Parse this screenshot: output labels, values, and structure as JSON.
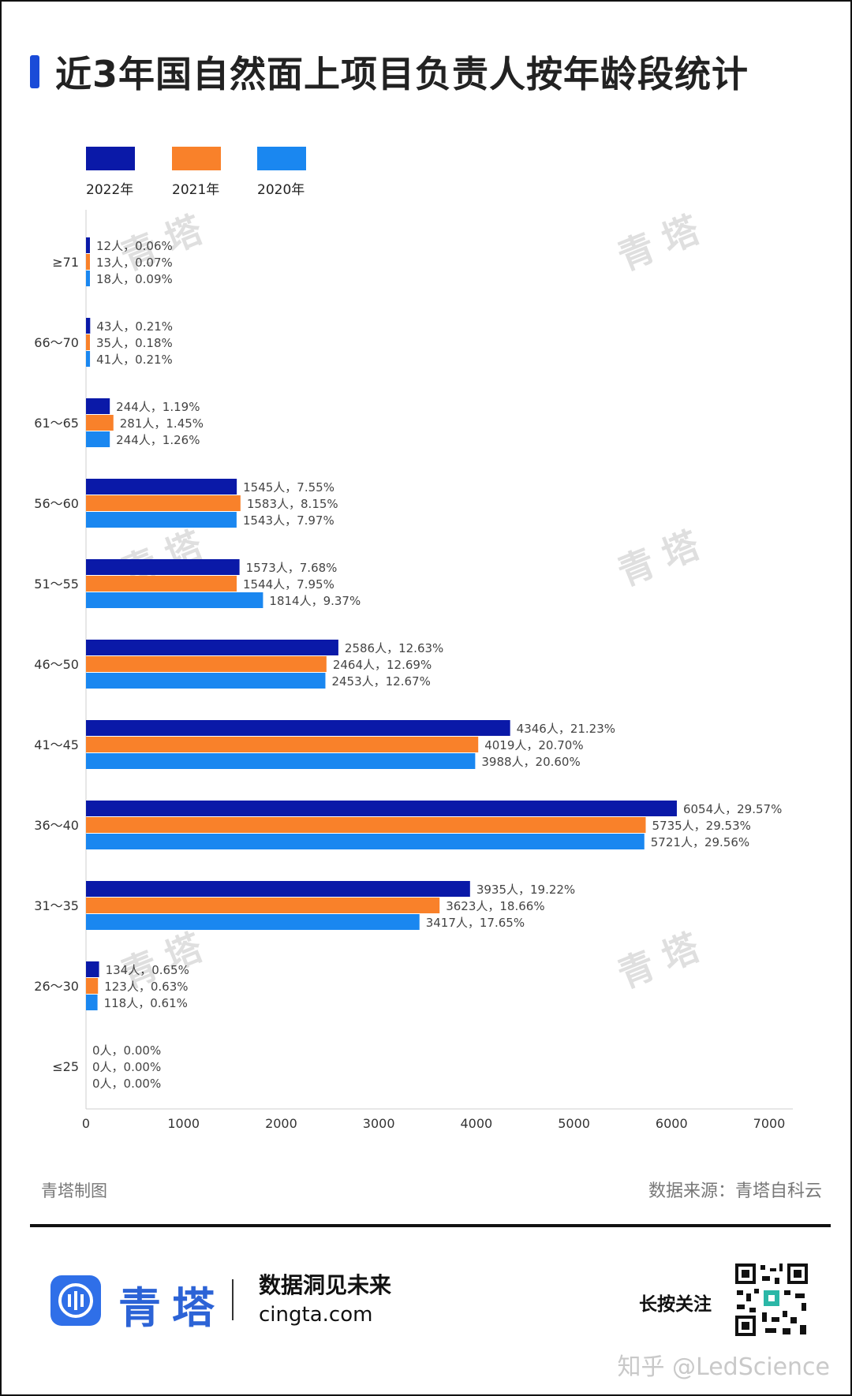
{
  "title": "近3年国自然面上项目负责人按年龄段统计",
  "legend": [
    {
      "label": "2022年",
      "color": "#0a19a8"
    },
    {
      "label": "2021年",
      "color": "#f9812a"
    },
    {
      "label": "2020年",
      "color": "#1a87f0"
    }
  ],
  "chart_data": {
    "type": "bar",
    "orientation": "horizontal",
    "categories": [
      "≥71",
      "66～70",
      "61～65",
      "56～60",
      "51～55",
      "46～50",
      "41～45",
      "36～40",
      "31～35",
      "26～30",
      "≤25"
    ],
    "series": [
      {
        "name": "2022年",
        "values": [
          12,
          43,
          244,
          1545,
          1573,
          2586,
          4346,
          6054,
          3935,
          134,
          0
        ],
        "labels": [
          "12人，0.06%",
          "43人，0.21%",
          "244人，1.19%",
          "1545人，7.55%",
          "1573人，7.68%",
          "2586人，12.63%",
          "4346人，21.23%",
          "6054人，29.57%",
          "3935人，19.22%",
          "134人，0.65%",
          "0人，0.00%"
        ]
      },
      {
        "name": "2021年",
        "values": [
          13,
          35,
          281,
          1583,
          1544,
          2464,
          4019,
          5735,
          3623,
          123,
          0
        ],
        "labels": [
          "13人，0.07%",
          "35人，0.18%",
          "281人，1.45%",
          "1583人，8.15%",
          "1544人，7.95%",
          "2464人，12.69%",
          "4019人，20.70%",
          "5735人，29.53%",
          "3623人，18.66%",
          "123人，0.63%",
          "0人，0.00%"
        ]
      },
      {
        "name": "2020年",
        "values": [
          18,
          41,
          244,
          1543,
          1814,
          2453,
          3988,
          5721,
          3417,
          118,
          0
        ],
        "labels": [
          "18人，0.09%",
          "41人，0.21%",
          "244人，1.26%",
          "1543人，7.97%",
          "1814人，9.37%",
          "2453人，12.67%",
          "3988人，20.60%",
          "5721人，29.56%",
          "3417人，17.65%",
          "118人，0.61%",
          "0人，0.00%"
        ]
      }
    ],
    "xlim": [
      0,
      7000
    ],
    "xticks": [
      "0",
      "1000",
      "2000",
      "3000",
      "4000",
      "5000",
      "6000",
      "7000"
    ],
    "grid": false
  },
  "footer": {
    "credit": "青塔制图",
    "source": "数据来源：青塔自科云"
  },
  "brand": {
    "name": "青塔",
    "slogan": "数据洞见未来",
    "site": "cingta.com",
    "follow": "长按关注",
    "watermark": "青塔",
    "zhihu": "知乎 @LedScience"
  }
}
